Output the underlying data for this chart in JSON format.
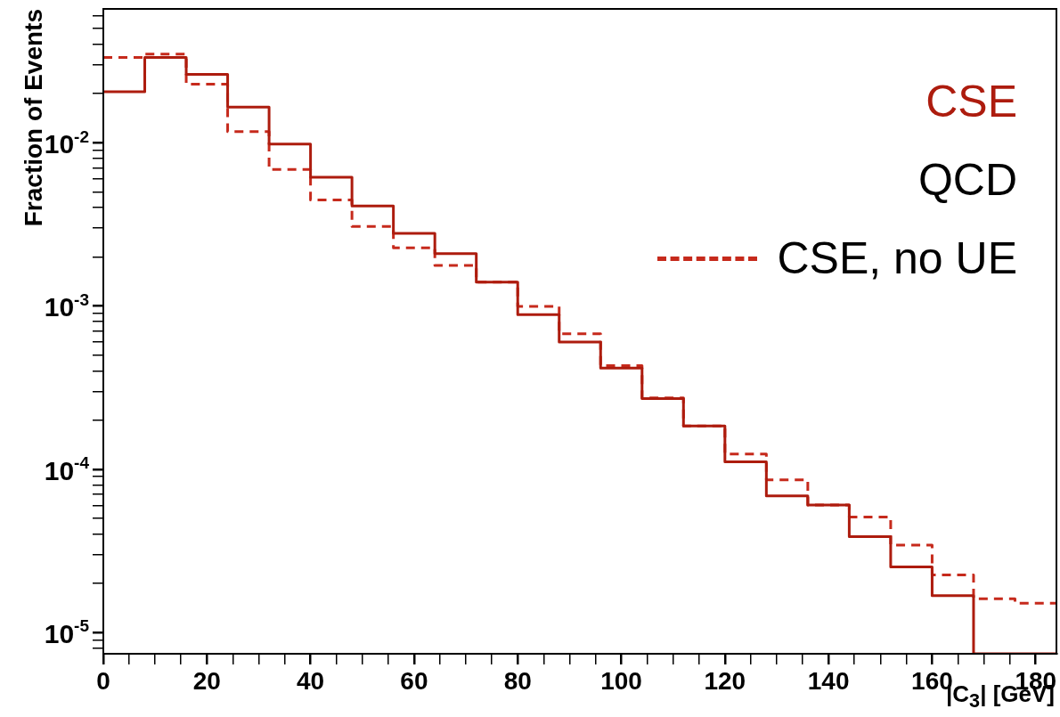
{
  "chart_data": {
    "type": "histogram",
    "xlabel": "|C$_{3}$| [GeV]",
    "ylabel": "Fraction of Events",
    "bins": [
      0,
      8,
      16,
      24,
      32,
      40,
      48,
      56,
      64,
      72,
      80,
      88,
      96,
      104,
      112,
      120,
      128,
      136,
      144,
      152,
      160,
      168,
      176,
      184
    ],
    "series": [
      {
        "name": "CSE",
        "color": "#ad1c0e",
        "line_style": "solid",
        "values": [
          0.0205,
          0.0333,
          0.0262,
          0.0165,
          0.0098,
          0.00615,
          0.00409,
          0.00278,
          0.00209,
          0.0014,
          0.000885,
          0.000601,
          0.000416,
          0.000271,
          0.000184,
          0.000111,
          6.86e-05,
          6.03e-05,
          3.86e-05,
          2.52e-05,
          1.68e-05,
          null,
          null
        ]
      },
      {
        "name": "CSE, no UE",
        "color": "#c62a1c",
        "line_style": "dashed",
        "values": [
          0.0333,
          0.0349,
          0.0228,
          0.0117,
          0.00685,
          0.00446,
          0.00307,
          0.00227,
          0.00177,
          0.0014,
          0.000995,
          0.000675,
          0.000431,
          0.000273,
          0.000184,
          0.000124,
          8.6e-05,
          6.03e-05,
          5.09e-05,
          3.43e-05,
          2.25e-05,
          1.61e-05,
          1.51e-05
        ]
      }
    ],
    "annotations": [
      "QCD"
    ],
    "log": "y",
    "legend": "top right",
    "grid": false,
    "xlim": [
      0,
      184
    ],
    "xticks": [
      0,
      {
        "value": 5,
        "label": null
      },
      {
        "value": 10,
        "label": null
      },
      {
        "value": 15,
        "label": null
      },
      20,
      {
        "value": 25,
        "label": null
      },
      {
        "value": 30,
        "label": null
      },
      {
        "value": 35,
        "label": null
      },
      40,
      {
        "value": 45,
        "label": null
      },
      {
        "value": 50,
        "label": null
      },
      {
        "value": 55,
        "label": null
      },
      60,
      {
        "value": 65,
        "label": null
      },
      {
        "value": 70,
        "label": null
      },
      {
        "value": 75,
        "label": null
      },
      80,
      {
        "value": 85,
        "label": null
      },
      {
        "value": 90,
        "label": null
      },
      {
        "value": 95,
        "label": null
      },
      100,
      {
        "value": 105,
        "label": null
      },
      {
        "value": 110,
        "label": null
      },
      {
        "value": 115,
        "label": null
      },
      120,
      {
        "value": 125,
        "label": null
      },
      {
        "value": 130,
        "label": null
      },
      {
        "value": 135,
        "label": null
      },
      140,
      {
        "value": 145,
        "label": null
      },
      {
        "value": 150,
        "label": null
      },
      {
        "value": 155,
        "label": null
      },
      160,
      {
        "value": 165,
        "label": null
      },
      {
        "value": 170,
        "label": null
      },
      {
        "value": 175,
        "label": null
      },
      180
    ],
    "ylim": [
      7.4e-06,
      0.066
    ],
    "yticks": [
      {
        "value": 8e-06,
        "label": null
      },
      {
        "value": 9e-06,
        "label": null
      },
      {
        "value": 1e-05,
        "label": "10$^{-5}$"
      },
      {
        "value": 2e-05,
        "label": null
      },
      {
        "value": 3e-05,
        "label": null
      },
      {
        "value": 4e-05,
        "label": null
      },
      {
        "value": 5e-05,
        "label": null
      },
      {
        "value": 6e-05,
        "label": null
      },
      {
        "value": 7e-05,
        "label": null
      },
      {
        "value": 8e-05,
        "label": null
      },
      {
        "value": 9e-05,
        "label": null
      },
      {
        "value": 0.0001,
        "label": "10$^{-4}$"
      },
      {
        "value": 0.0002,
        "label": null
      },
      {
        "value": 0.0003,
        "label": null
      },
      {
        "value": 0.0004,
        "label": null
      },
      {
        "value": 0.0005,
        "label": null
      },
      {
        "value": 0.0006,
        "label": null
      },
      {
        "value": 0.0007,
        "label": null
      },
      {
        "value": 0.0008,
        "label": null
      },
      {
        "value": 0.0009,
        "label": null
      },
      {
        "value": 0.001,
        "label": "10$^{-3}$"
      },
      {
        "value": 0.002,
        "label": null
      },
      {
        "value": 0.003,
        "label": null
      },
      {
        "value": 0.004,
        "label": null
      },
      {
        "value": 0.005,
        "label": null
      },
      {
        "value": 0.006,
        "label": null
      },
      {
        "value": 0.007,
        "label": null
      },
      {
        "value": 0.008,
        "label": null
      },
      {
        "value": 0.009,
        "label": null
      },
      {
        "value": 0.01,
        "label": "10$^{-2}$"
      },
      {
        "value": 0.02,
        "label": null
      },
      {
        "value": 0.03,
        "label": null
      },
      {
        "value": 0.04,
        "label": null
      },
      {
        "value": 0.05,
        "label": null
      },
      {
        "value": 0.06,
        "label": null
      }
    ]
  }
}
